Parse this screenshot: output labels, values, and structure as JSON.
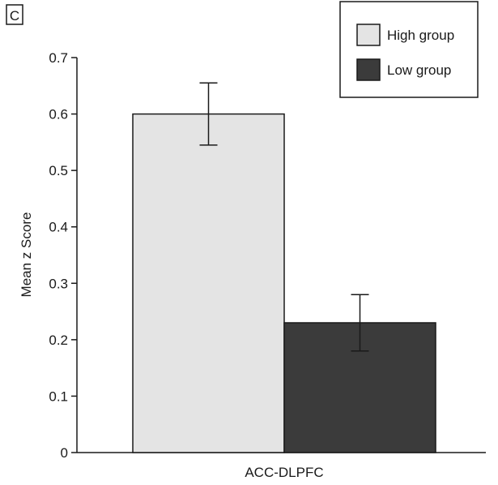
{
  "panel_label": "C",
  "chart_data": {
    "type": "bar",
    "categories": [
      "ACC-DLPFC"
    ],
    "series": [
      {
        "name": "High group",
        "values": [
          0.6
        ],
        "error": [
          [
            0.545,
            0.655
          ]
        ],
        "color": "#e4e4e4"
      },
      {
        "name": "Low group",
        "values": [
          0.23
        ],
        "error": [
          [
            0.18,
            0.28
          ]
        ],
        "color": "#3b3b3b"
      }
    ],
    "xlabel": "",
    "ylabel": "Mean z Score",
    "ylim": [
      0,
      0.7
    ],
    "yticks": [
      "0",
      "0.1",
      "0.2",
      "0.3",
      "0.4",
      "0.5",
      "0.6",
      "0.7"
    ],
    "grid": false,
    "legend_position": "top-right"
  }
}
